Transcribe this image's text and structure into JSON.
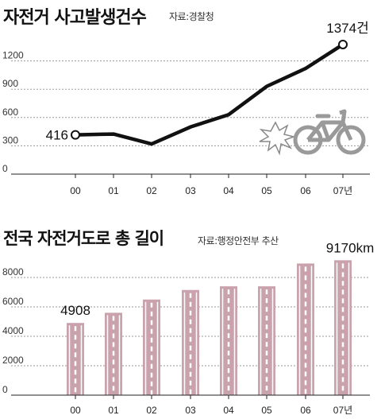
{
  "chart_data": [
    {
      "type": "line",
      "title": "자전거 사고발생건수",
      "source": "자료:경찰청",
      "categories": [
        "00",
        "01",
        "02",
        "03",
        "04",
        "05",
        "06",
        "07년"
      ],
      "values": [
        416,
        425,
        320,
        500,
        630,
        930,
        1120,
        1374
      ],
      "data_labels": [
        "416",
        "",
        "",
        "",
        "",
        "",
        "",
        "1374건"
      ],
      "yticks": [
        "0",
        "300",
        "600",
        "900",
        "1200"
      ],
      "ylim": [
        0,
        1500
      ],
      "grid": "horizontal dashed",
      "icon": "bicycle-crash-icon"
    },
    {
      "type": "bar",
      "title": "전국 자전거도로 총 길이",
      "source": "자료:행정안전부 추산",
      "categories": [
        "00",
        "01",
        "02",
        "03",
        "04",
        "05",
        "06",
        "07년"
      ],
      "values": [
        4908,
        5600,
        6500,
        7150,
        7400,
        7400,
        8950,
        9170
      ],
      "data_labels": [
        "4908",
        "",
        "",
        "",
        "",
        "",
        "",
        "9170km"
      ],
      "yticks": [
        "0",
        "2000",
        "4000",
        "6000",
        "8000"
      ],
      "ylim": [
        0,
        10000
      ],
      "grid": "horizontal dashed",
      "bar_color": "#c9a2ad"
    }
  ]
}
